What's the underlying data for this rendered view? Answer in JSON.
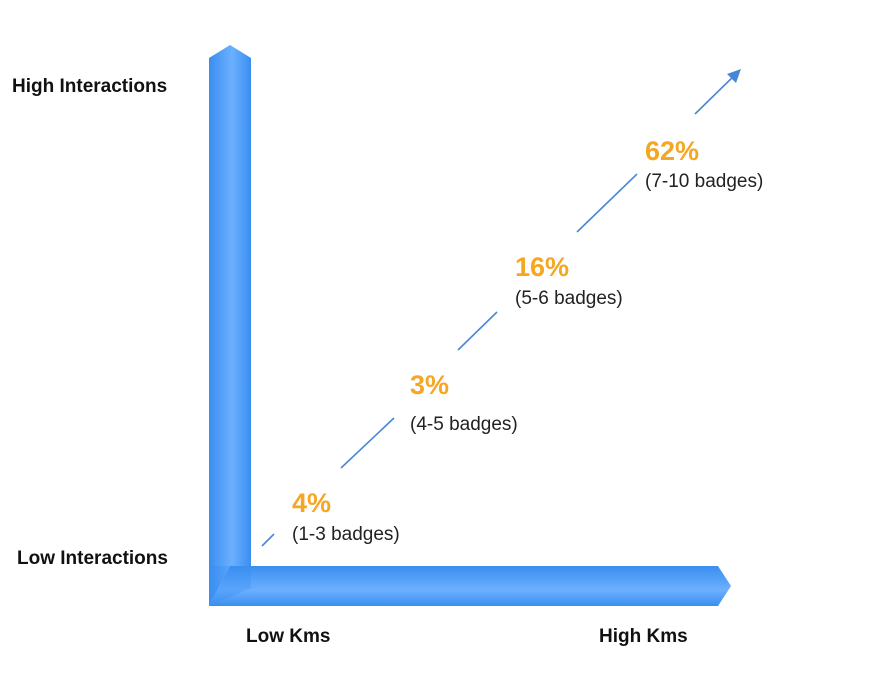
{
  "axes": {
    "y_high_label": "High Interactions",
    "y_low_label": "Low Interactions",
    "x_low_label": "Low Kms",
    "x_high_label": "High Kms"
  },
  "colors": {
    "axis_blue": "#3a8ef0",
    "axis_blue_light": "#6cb0ff",
    "percent_orange": "#f5a623",
    "trend_line": "#4a86d8"
  },
  "points": [
    {
      "percent": "4%",
      "badges": "(1-3 badges)"
    },
    {
      "percent": "3%",
      "badges": "(4-5 badges)"
    },
    {
      "percent": "16%",
      "badges": "(5-6 badges)"
    },
    {
      "percent": "62%",
      "badges": "(7-10 badges)"
    }
  ]
}
